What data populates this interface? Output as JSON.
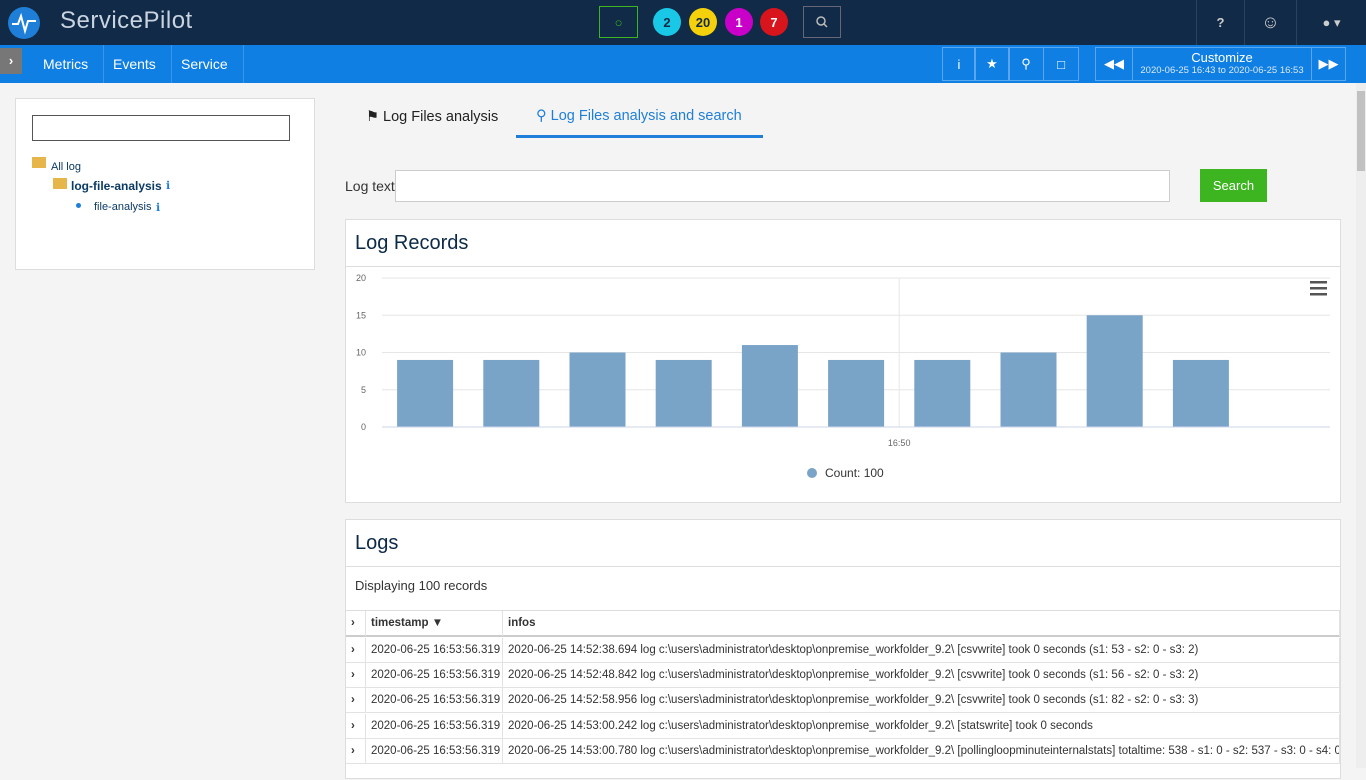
{
  "header": {
    "brand": "ServicePilot",
    "badges": [
      2,
      20,
      1,
      7
    ]
  },
  "nav": {
    "items": [
      "Metrics",
      "Events",
      "Service"
    ],
    "customize": "Customize",
    "range_from": "2020-06-25 16:43",
    "range_to_word": "to",
    "range_to": "2020-06-25 16:53"
  },
  "sidebar": {
    "tree": [
      "All log",
      "log-file-analysis",
      "file-analysis"
    ]
  },
  "tabs": [
    "Log Files analysis",
    "Log Files analysis and search"
  ],
  "search": {
    "label": "Log text",
    "button": "Search"
  },
  "chart_panel": {
    "title": "Log Records"
  },
  "chart_data": {
    "type": "bar",
    "categories": [
      null,
      null,
      null,
      null,
      null,
      null,
      null,
      null,
      null,
      null
    ],
    "xtick_label": "16:50",
    "series": [
      {
        "name": "Count: 100",
        "color": "#7aa3c8",
        "values": [
          9,
          9,
          10,
          9,
          11,
          9,
          9,
          10,
          15,
          9
        ]
      }
    ],
    "ylim": [
      0,
      20
    ],
    "yticks": [
      0,
      5,
      10,
      15,
      20
    ],
    "grid": true
  },
  "logs_panel": {
    "title": "Logs",
    "summary": "Displaying 100 records"
  },
  "table": {
    "headers": [
      "timestamp",
      "infos"
    ],
    "rows": [
      {
        "timestamp": "2020-06-25 16:53:56.319",
        "infos": "2020-06-25 14:52:38.694 log c:\\users\\administrator\\desktop\\onpremise_workfolder_9.2\\ [csvwrite] took 0 seconds (s1: 53 - s2: 0 - s3: 2)"
      },
      {
        "timestamp": "2020-06-25 16:53:56.319",
        "infos": "2020-06-25 14:52:48.842 log c:\\users\\administrator\\desktop\\onpremise_workfolder_9.2\\ [csvwrite] took 0 seconds (s1: 56 - s2: 0 - s3: 2)"
      },
      {
        "timestamp": "2020-06-25 16:53:56.319",
        "infos": "2020-06-25 14:52:58.956 log c:\\users\\administrator\\desktop\\onpremise_workfolder_9.2\\ [csvwrite] took 0 seconds (s1: 82 - s2: 0 - s3: 3)"
      },
      {
        "timestamp": "2020-06-25 16:53:56.319",
        "infos": "2020-06-25 14:53:00.242 log c:\\users\\administrator\\desktop\\onpremise_workfolder_9.2\\ [statswrite] took 0 seconds"
      },
      {
        "timestamp": "2020-06-25 16:53:56.319",
        "infos": "2020-06-25 14:53:00.780 log c:\\users\\administrator\\desktop\\onpremise_workfolder_9.2\\ [pollingloopminuteinternalstats] totaltime: 538 - s1: 0 - s2: 537 - s3: 0 - s4: 0"
      }
    ]
  }
}
